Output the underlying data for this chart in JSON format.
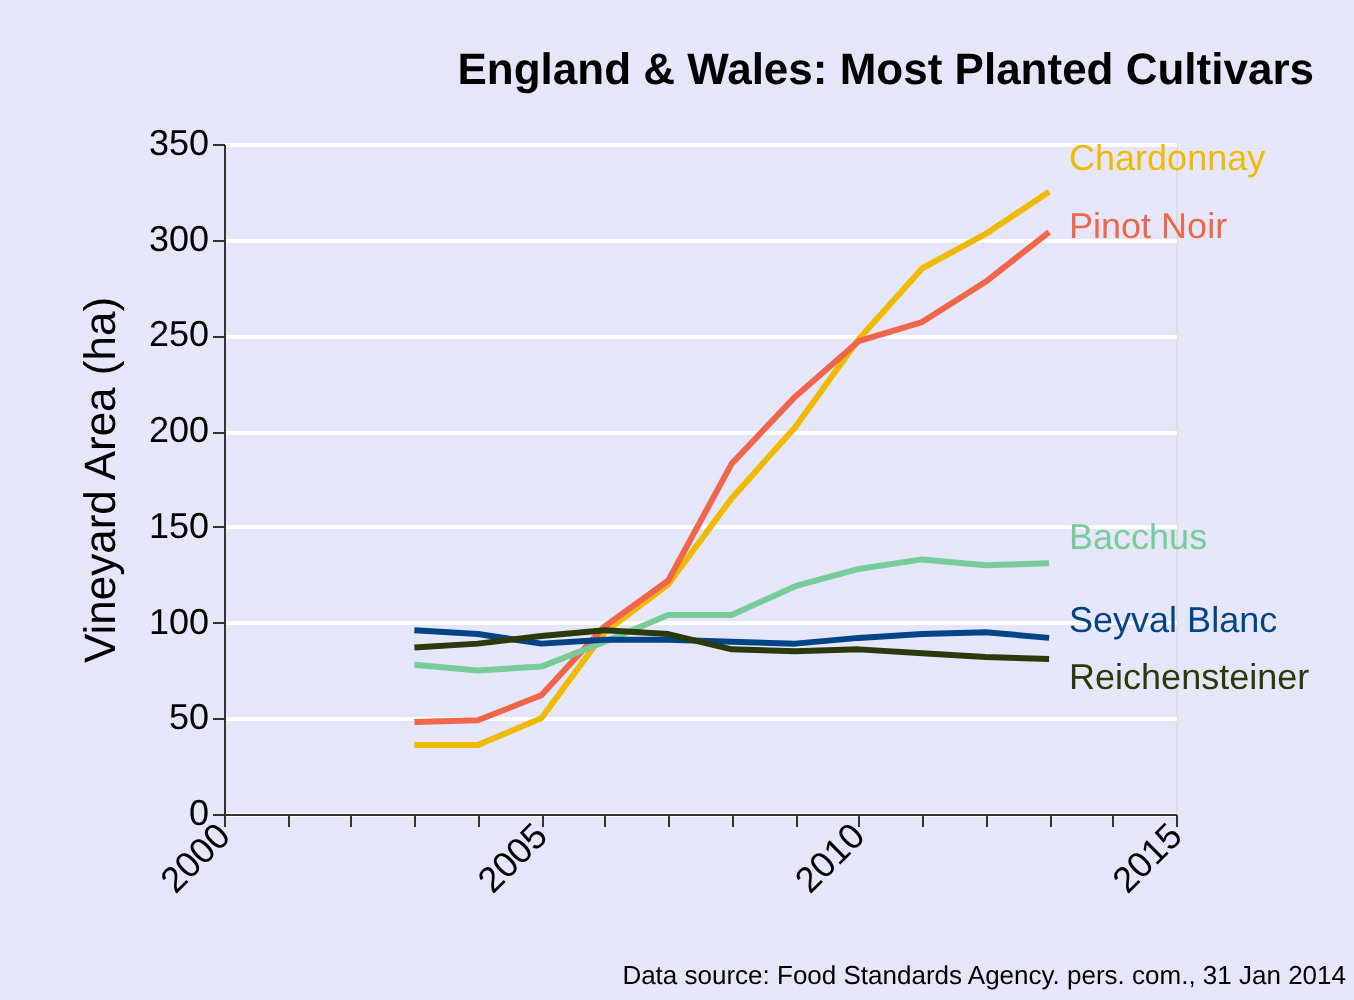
{
  "chart_data": {
    "type": "line",
    "title": "England & Wales: Most Planted Cultivars",
    "ylabel": "Vineyard Area (ha)",
    "x": [
      2003,
      2004,
      2005,
      2006,
      2007,
      2008,
      2009,
      2010,
      2011,
      2012,
      2013
    ],
    "series": [
      {
        "name": "Chardonnay",
        "color": "#eebb00",
        "values": [
          36,
          36,
          50,
          95,
          120,
          165,
          202,
          248,
          285,
          303,
          325
        ]
      },
      {
        "name": "Pinot Noir",
        "color": "#f0664a",
        "values": [
          48,
          49,
          62,
          98,
          122,
          183,
          218,
          247,
          257,
          278,
          304
        ]
      },
      {
        "name": "Bacchus",
        "color": "#77cc99",
        "values": [
          78,
          75,
          77,
          90,
          104,
          104,
          119,
          128,
          133,
          130,
          131
        ]
      },
      {
        "name": "Seyval Blanc",
        "color": "#004488",
        "values": [
          96,
          94,
          89,
          91,
          91,
          90,
          89,
          92,
          94,
          95,
          92
        ]
      },
      {
        "name": "Reichensteiner",
        "color": "#2b3a0b",
        "values": [
          87,
          89,
          93,
          96,
          94,
          86,
          85,
          86,
          84,
          82,
          81
        ]
      }
    ],
    "xlim": [
      2000,
      2015
    ],
    "xticks": [
      2000,
      {
        "value": 2001,
        "label": null
      },
      {
        "value": 2002,
        "label": null
      },
      {
        "value": 2003,
        "label": null
      },
      {
        "value": 2004,
        "label": null
      },
      2005,
      {
        "value": 2006,
        "label": null
      },
      {
        "value": 2007,
        "label": null
      },
      {
        "value": 2008,
        "label": null
      },
      {
        "value": 2009,
        "label": null
      },
      2010,
      {
        "value": 2011,
        "label": null
      },
      {
        "value": 2012,
        "label": null
      },
      {
        "value": 2013,
        "label": null
      },
      {
        "value": 2014,
        "label": null
      },
      2015
    ],
    "ylim": [
      0,
      350
    ],
    "yticks": [
      0,
      50,
      100,
      150,
      200,
      250,
      300,
      350
    ],
    "grid": "y",
    "legend": false,
    "marker": "none",
    "line_style": "solid",
    "annotations": [
      "Data source: Food Standards Agency. pers. com., 31 Jan 2014"
    ]
  }
}
